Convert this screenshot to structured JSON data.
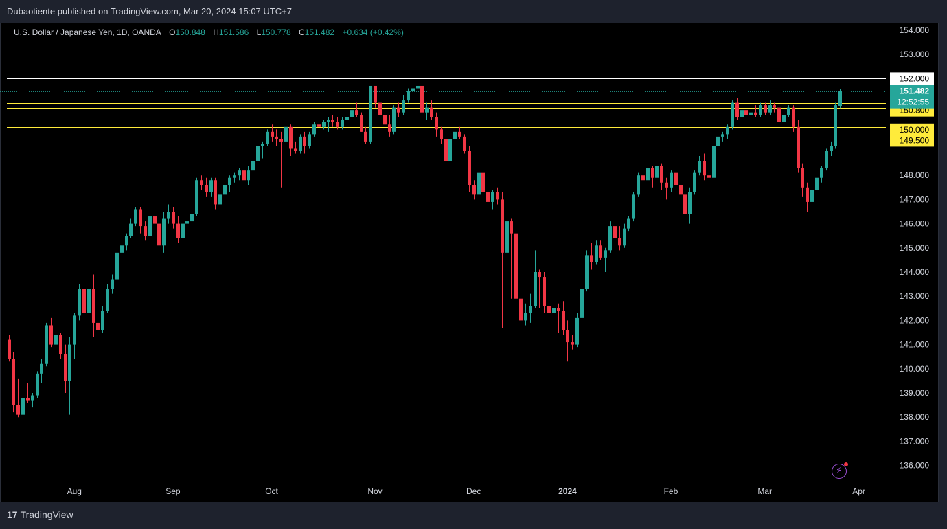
{
  "publisher": "Dubaotiente published on TradingView.com, Mar 20, 2024 15:07 UTC+7",
  "legend": {
    "title": "U.S. Dollar / Japanese Yen, 1D, OANDA",
    "o_key": "O",
    "o_val": "150.848",
    "h_key": "H",
    "h_val": "151.586",
    "l_key": "L",
    "l_val": "150.778",
    "c_key": "C",
    "c_val": "151.482",
    "change": "+0.634 (+0.42%)"
  },
  "footer": {
    "brand": "TradingView"
  },
  "colors": {
    "up": "#26a69a",
    "down": "#f23645",
    "level": "#ffeb3b",
    "level_white": "#ffffff",
    "background": "#000000"
  },
  "chart_data": {
    "type": "candlestick",
    "symbol": "USDJPY",
    "timeframe": "1D",
    "ylim": [
      135.2,
      154.6
    ],
    "y_ticks": [
      "154.000",
      "153.000",
      "148.000",
      "147.000",
      "146.000",
      "145.000",
      "144.000",
      "143.000",
      "142.000",
      "141.000",
      "140.000",
      "139.000",
      "138.000",
      "137.000",
      "136.000"
    ],
    "x_ticks": [
      {
        "label": "Aug",
        "t": 14
      },
      {
        "label": "Sep",
        "t": 35
      },
      {
        "label": "Oct",
        "t": 56
      },
      {
        "label": "Nov",
        "t": 78
      },
      {
        "label": "Dec",
        "t": 99
      },
      {
        "label": "2024",
        "t": 119,
        "bold": true
      },
      {
        "label": "Feb",
        "t": 141
      },
      {
        "label": "Mar",
        "t": 161
      },
      {
        "label": "Apr",
        "t": 181
      }
    ],
    "x_range": [
      -1.5,
      184
    ],
    "levels": [
      {
        "price": 152.0,
        "label": "152.000",
        "style": "white"
      },
      {
        "price": 151.0,
        "label": "151.000",
        "style": "yellow"
      },
      {
        "price": 150.8,
        "label": "150.800",
        "style": "yellow"
      },
      {
        "price": 150.0,
        "label": "150.000",
        "style": "yellow"
      },
      {
        "price": 149.5,
        "label": "149.500",
        "style": "yellow"
      }
    ],
    "current": {
      "price": 151.482,
      "label": "151.482",
      "countdown": "12:52:55"
    },
    "candles": [
      [
        141.2,
        141.4,
        140.3,
        140.4
      ],
      [
        140.4,
        140.7,
        138.2,
        138.5
      ],
      [
        138.5,
        139.6,
        138.0,
        138.1
      ],
      [
        138.1,
        139.0,
        137.3,
        138.8
      ],
      [
        138.8,
        139.4,
        138.6,
        138.7
      ],
      [
        138.7,
        139.0,
        138.4,
        138.9
      ],
      [
        138.9,
        139.9,
        138.8,
        139.8
      ],
      [
        139.8,
        140.4,
        139.4,
        140.2
      ],
      [
        140.2,
        141.9,
        140.1,
        141.8
      ],
      [
        141.8,
        142.1,
        140.9,
        141.0
      ],
      [
        141.0,
        141.6,
        140.9,
        141.4
      ],
      [
        141.4,
        141.5,
        140.4,
        140.6
      ],
      [
        140.6,
        141.0,
        139.0,
        139.5
      ],
      [
        139.5,
        141.3,
        138.1,
        141.0
      ],
      [
        141.0,
        142.3,
        140.4,
        142.2
      ],
      [
        142.2,
        143.5,
        142.0,
        143.3
      ],
      [
        143.3,
        143.8,
        142.3,
        142.3
      ],
      [
        142.3,
        143.6,
        142.1,
        143.3
      ],
      [
        143.3,
        143.9,
        141.3,
        141.9
      ],
      [
        141.9,
        142.5,
        141.4,
        141.6
      ],
      [
        141.6,
        142.6,
        141.5,
        142.4
      ],
      [
        142.4,
        143.5,
        142.3,
        143.3
      ],
      [
        143.3,
        143.9,
        143.1,
        143.7
      ],
      [
        143.7,
        144.9,
        143.6,
        144.8
      ],
      [
        144.8,
        145.2,
        144.6,
        145.1
      ],
      [
        145.1,
        145.6,
        144.9,
        145.5
      ],
      [
        145.5,
        146.2,
        145.4,
        146.0
      ],
      [
        146.0,
        146.7,
        145.9,
        146.6
      ],
      [
        146.6,
        146.7,
        145.6,
        145.9
      ],
      [
        145.9,
        146.1,
        145.3,
        145.5
      ],
      [
        145.5,
        146.6,
        145.4,
        146.3
      ],
      [
        146.3,
        146.5,
        145.6,
        146.0
      ],
      [
        146.0,
        146.1,
        144.7,
        145.1
      ],
      [
        145.1,
        146.5,
        144.8,
        146.2
      ],
      [
        146.2,
        146.8,
        146.0,
        146.5
      ],
      [
        146.5,
        146.7,
        145.8,
        146.0
      ],
      [
        146.0,
        146.3,
        145.2,
        145.4
      ],
      [
        145.4,
        146.2,
        144.5,
        146.0
      ],
      [
        146.0,
        146.2,
        145.9,
        146.1
      ],
      [
        146.1,
        146.6,
        145.9,
        146.4
      ],
      [
        146.4,
        147.9,
        146.3,
        147.8
      ],
      [
        147.8,
        148.0,
        147.4,
        147.6
      ],
      [
        147.6,
        147.9,
        147.1,
        147.3
      ],
      [
        147.3,
        147.9,
        147.1,
        147.8
      ],
      [
        147.8,
        147.9,
        146.6,
        146.8
      ],
      [
        146.8,
        147.3,
        146.0,
        147.2
      ],
      [
        147.2,
        147.7,
        147.0,
        147.6
      ],
      [
        147.6,
        148.0,
        147.3,
        147.9
      ],
      [
        147.9,
        148.1,
        147.7,
        148.0
      ],
      [
        148.0,
        148.3,
        147.8,
        148.2
      ],
      [
        148.2,
        148.5,
        147.7,
        147.8
      ],
      [
        147.8,
        148.4,
        147.6,
        148.2
      ],
      [
        148.2,
        148.7,
        147.9,
        148.6
      ],
      [
        148.6,
        149.3,
        148.5,
        149.2
      ],
      [
        149.2,
        149.4,
        148.7,
        149.3
      ],
      [
        149.3,
        149.9,
        149.2,
        149.8
      ],
      [
        149.8,
        150.1,
        149.4,
        149.6
      ],
      [
        149.6,
        149.9,
        149.2,
        149.5
      ],
      [
        149.5,
        149.8,
        147.5,
        149.4
      ],
      [
        149.4,
        150.3,
        149.3,
        150.0
      ],
      [
        150.0,
        150.1,
        148.8,
        149.1
      ],
      [
        149.1,
        149.4,
        148.9,
        149.0
      ],
      [
        149.0,
        149.7,
        148.9,
        149.6
      ],
      [
        149.6,
        149.8,
        148.9,
        149.2
      ],
      [
        149.2,
        149.8,
        149.1,
        149.7
      ],
      [
        149.7,
        150.2,
        149.6,
        150.1
      ],
      [
        150.1,
        150.3,
        149.8,
        150.0
      ],
      [
        150.0,
        150.3,
        149.9,
        150.2
      ],
      [
        150.2,
        150.4,
        149.8,
        150.3
      ],
      [
        150.3,
        150.5,
        150.0,
        150.2
      ],
      [
        150.2,
        150.4,
        149.9,
        150.0
      ],
      [
        150.0,
        150.4,
        149.9,
        150.3
      ],
      [
        150.3,
        150.5,
        150.1,
        150.4
      ],
      [
        150.4,
        150.8,
        150.2,
        150.7
      ],
      [
        150.7,
        151.0,
        150.4,
        150.5
      ],
      [
        150.5,
        150.6,
        149.8,
        149.8
      ],
      [
        149.8,
        150.0,
        149.3,
        149.4
      ],
      [
        149.4,
        151.7,
        149.3,
        151.7
      ],
      [
        151.7,
        151.7,
        150.8,
        151.0
      ],
      [
        151.0,
        151.3,
        150.3,
        150.5
      ],
      [
        150.5,
        150.8,
        150.0,
        150.1
      ],
      [
        150.1,
        150.5,
        149.6,
        149.8
      ],
      [
        149.8,
        150.9,
        149.7,
        150.8
      ],
      [
        150.8,
        151.0,
        150.4,
        150.6
      ],
      [
        150.6,
        151.3,
        150.5,
        151.1
      ],
      [
        151.1,
        151.6,
        151.0,
        151.5
      ],
      [
        151.5,
        151.9,
        151.4,
        151.6
      ],
      [
        151.6,
        151.8,
        151.3,
        151.7
      ],
      [
        151.7,
        151.8,
        150.5,
        150.6
      ],
      [
        150.6,
        151.0,
        150.3,
        150.8
      ],
      [
        150.8,
        151.1,
        150.3,
        150.4
      ],
      [
        150.4,
        150.6,
        149.6,
        149.9
      ],
      [
        149.9,
        150.0,
        149.3,
        149.5
      ],
      [
        149.5,
        149.8,
        148.3,
        148.6
      ],
      [
        148.6,
        149.6,
        148.5,
        149.5
      ],
      [
        149.5,
        149.9,
        149.3,
        149.8
      ],
      [
        149.8,
        150.0,
        149.5,
        149.6
      ],
      [
        149.6,
        149.7,
        148.9,
        149.0
      ],
      [
        149.0,
        149.2,
        147.3,
        147.6
      ],
      [
        147.6,
        147.8,
        147.0,
        147.2
      ],
      [
        147.2,
        148.3,
        147.1,
        148.1
      ],
      [
        148.1,
        148.4,
        147.0,
        147.3
      ],
      [
        147.3,
        147.5,
        146.8,
        146.9
      ],
      [
        146.9,
        147.4,
        146.6,
        147.3
      ],
      [
        147.3,
        147.5,
        146.8,
        147.0
      ],
      [
        147.0,
        147.3,
        141.7,
        144.8
      ],
      [
        144.8,
        146.3,
        144.1,
        146.1
      ],
      [
        146.1,
        146.2,
        142.9,
        145.6
      ],
      [
        145.6,
        145.7,
        142.1,
        142.9
      ],
      [
        142.9,
        143.3,
        141.0,
        142.0
      ],
      [
        142.0,
        142.7,
        141.8,
        142.3
      ],
      [
        142.3,
        143.1,
        141.9,
        142.6
      ],
      [
        142.6,
        144.9,
        142.5,
        144.0
      ],
      [
        144.0,
        144.1,
        142.5,
        143.8
      ],
      [
        143.8,
        144.0,
        142.3,
        142.6
      ],
      [
        142.6,
        142.9,
        141.8,
        142.3
      ],
      [
        142.3,
        142.7,
        142.0,
        142.5
      ],
      [
        142.5,
        142.7,
        141.5,
        142.4
      ],
      [
        142.4,
        142.8,
        141.4,
        141.6
      ],
      [
        141.6,
        142.0,
        140.3,
        141.1
      ],
      [
        141.1,
        141.4,
        140.8,
        141.0
      ],
      [
        141.0,
        142.3,
        140.9,
        142.1
      ],
      [
        142.1,
        143.4,
        142.0,
        143.3
      ],
      [
        143.3,
        144.9,
        143.2,
        144.7
      ],
      [
        144.7,
        145.2,
        144.1,
        144.4
      ],
      [
        144.4,
        145.3,
        144.3,
        145.1
      ],
      [
        145.1,
        145.3,
        144.5,
        144.6
      ],
      [
        144.6,
        145.0,
        144.0,
        144.9
      ],
      [
        144.9,
        146.1,
        144.8,
        145.9
      ],
      [
        145.9,
        146.1,
        145.2,
        145.4
      ],
      [
        145.4,
        145.9,
        144.9,
        145.1
      ],
      [
        145.1,
        146.0,
        145.0,
        145.8
      ],
      [
        145.8,
        146.3,
        145.7,
        146.2
      ],
      [
        146.2,
        147.3,
        146.1,
        147.2
      ],
      [
        147.2,
        148.1,
        147.1,
        148.0
      ],
      [
        148.0,
        148.6,
        147.6,
        147.8
      ],
      [
        147.8,
        148.8,
        147.6,
        148.3
      ],
      [
        148.3,
        148.4,
        147.5,
        147.9
      ],
      [
        147.9,
        148.5,
        147.6,
        148.4
      ],
      [
        148.4,
        148.5,
        147.4,
        147.7
      ],
      [
        147.7,
        147.9,
        147.0,
        147.5
      ],
      [
        147.5,
        148.2,
        147.3,
        148.1
      ],
      [
        148.1,
        148.4,
        147.5,
        147.6
      ],
      [
        147.6,
        147.9,
        146.9,
        147.2
      ],
      [
        147.2,
        147.6,
        146.1,
        146.4
      ],
      [
        146.4,
        147.5,
        146.0,
        147.3
      ],
      [
        147.3,
        148.2,
        147.2,
        148.1
      ],
      [
        148.1,
        148.8,
        148.0,
        148.6
      ],
      [
        148.6,
        148.9,
        147.8,
        148.0
      ],
      [
        148.0,
        148.2,
        147.6,
        147.9
      ],
      [
        147.9,
        149.3,
        147.8,
        149.2
      ],
      [
        149.2,
        149.8,
        149.1,
        149.6
      ],
      [
        149.6,
        149.8,
        149.4,
        149.7
      ],
      [
        149.7,
        150.1,
        149.5,
        150.0
      ],
      [
        150.0,
        151.1,
        149.9,
        151.0
      ],
      [
        151.0,
        151.2,
        150.3,
        150.4
      ],
      [
        150.4,
        150.8,
        150.1,
        150.7
      ],
      [
        150.7,
        151.0,
        150.4,
        150.5
      ],
      [
        150.5,
        150.7,
        150.3,
        150.6
      ],
      [
        150.6,
        150.9,
        150.4,
        150.5
      ],
      [
        150.5,
        151.0,
        150.4,
        150.9
      ],
      [
        150.9,
        151.0,
        150.5,
        150.6
      ],
      [
        150.6,
        151.1,
        150.5,
        150.9
      ],
      [
        150.9,
        151.0,
        150.6,
        150.8
      ],
      [
        150.8,
        150.9,
        149.9,
        150.2
      ],
      [
        150.2,
        150.6,
        150.0,
        150.5
      ],
      [
        150.5,
        150.9,
        150.4,
        150.8
      ],
      [
        150.8,
        150.9,
        149.8,
        150.0
      ],
      [
        150.0,
        150.3,
        148.1,
        148.3
      ],
      [
        148.3,
        148.5,
        147.1,
        147.5
      ],
      [
        147.5,
        147.7,
        146.5,
        146.9
      ],
      [
        146.9,
        147.6,
        146.7,
        147.4
      ],
      [
        147.4,
        148.0,
        147.1,
        147.9
      ],
      [
        147.9,
        148.4,
        147.7,
        148.3
      ],
      [
        148.3,
        149.1,
        148.2,
        149.0
      ],
      [
        149.0,
        149.4,
        148.8,
        149.2
      ],
      [
        149.2,
        151.0,
        149.1,
        150.9
      ],
      [
        150.848,
        151.586,
        150.778,
        151.482
      ]
    ]
  }
}
